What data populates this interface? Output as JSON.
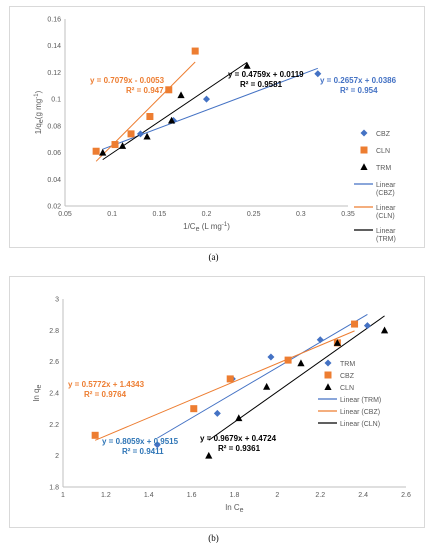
{
  "captions": {
    "a": "(a)",
    "b": "(b)"
  },
  "chart_data": [
    {
      "type": "scatter",
      "id": "a",
      "ylabel": "1/q",
      "ylabel_sub": "e",
      "ylabel_tail": "(g mg",
      "ylabel_sup": "-1",
      "ylabel_end": ")",
      "xlabel": "1/C",
      "xlabel_sub": "e",
      "xlabel_tail": " (L mg",
      "xlabel_sup": "-1",
      "xlabel_end": ")",
      "xlim": [
        0.05,
        0.35
      ],
      "ylim": [
        0.02,
        0.16
      ],
      "xticks": [
        "0.05",
        "0.1",
        "0.15",
        "0.2",
        "0.25",
        "0.3",
        "0.35"
      ],
      "yticks": [
        "0.02",
        "0.04",
        "0.06",
        "0.08",
        "0.1",
        "0.12",
        "0.14",
        "0.16"
      ],
      "grid": false,
      "legend_position": "right",
      "series": [
        {
          "name": "CBZ",
          "marker": "diamond",
          "color": "#4472c4",
          "x": [
            0.13,
            0.165,
            0.2,
            0.318
          ],
          "y": [
            0.074,
            0.084,
            0.1,
            0.119
          ]
        },
        {
          "name": "CLN",
          "marker": "square",
          "color": "#ed7d31",
          "x": [
            0.083,
            0.103,
            0.12,
            0.14,
            0.16,
            0.188
          ],
          "y": [
            0.061,
            0.066,
            0.074,
            0.087,
            0.107,
            0.136
          ]
        },
        {
          "name": "TRM",
          "marker": "triangle",
          "color": "#000000",
          "x": [
            0.09,
            0.111,
            0.137,
            0.163,
            0.173,
            0.243
          ],
          "y": [
            0.06,
            0.065,
            0.072,
            0.084,
            0.103,
            0.125
          ]
        }
      ],
      "fits": [
        {
          "name": "Linear\n(CBZ)",
          "color": "#4472c4",
          "slope": 0.2657,
          "intercept": 0.0386,
          "x_range": [
            0.09,
            0.318
          ]
        },
        {
          "name": "Linear\n(CLN)",
          "color": "#ed7d31",
          "slope": 0.7079,
          "intercept": -0.0053,
          "x_range": [
            0.083,
            0.188
          ]
        },
        {
          "name": "Linear\n(TRM)",
          "color": "#000000",
          "slope": 0.4759,
          "intercept": 0.0119,
          "x_range": [
            0.09,
            0.243
          ]
        }
      ],
      "annotations": [
        {
          "eq": "y = 0.7079x - 0.0053",
          "r2": "R² = 0.947",
          "color": "#ed7d31"
        },
        {
          "eq": "y = 0.4759x + 0.0119",
          "r2": "R² = 0.9581",
          "color": "#000000"
        },
        {
          "eq": "y = 0.2657x + 0.0386",
          "r2": "R² = 0.954",
          "color": "#4472c4"
        }
      ]
    },
    {
      "type": "scatter",
      "id": "b",
      "ylabel": "ln q",
      "ylabel_sub": "e",
      "xlabel": "ln C",
      "xlabel_sub": "e",
      "xlim": [
        1.0,
        2.6
      ],
      "ylim": [
        1.8,
        3.0
      ],
      "xticks": [
        "1",
        "1.2",
        "1.4",
        "1.6",
        "1.8",
        "2",
        "2.2",
        "2.4",
        "2.6"
      ],
      "yticks": [
        "1.8",
        "2",
        "2.2",
        "2.4",
        "2.6",
        "2.8",
        "3"
      ],
      "grid": false,
      "legend_position": "right",
      "series": [
        {
          "name": "TRM",
          "marker": "diamond",
          "color": "#4472c4",
          "x": [
            1.44,
            1.72,
            1.79,
            1.97,
            2.2,
            2.42
          ],
          "y": [
            2.07,
            2.27,
            2.49,
            2.63,
            2.74,
            2.83
          ]
        },
        {
          "name": "CBZ",
          "marker": "square",
          "color": "#ed7d31",
          "x": [
            1.15,
            1.61,
            1.78,
            2.05,
            2.28,
            2.36
          ],
          "y": [
            2.13,
            2.3,
            2.49,
            2.61,
            2.72,
            2.84
          ]
        },
        {
          "name": "CLN",
          "marker": "triangle",
          "color": "#000000",
          "x": [
            1.68,
            1.82,
            1.95,
            2.11,
            2.28,
            2.5
          ],
          "y": [
            2.0,
            2.24,
            2.44,
            2.59,
            2.72,
            2.8
          ]
        }
      ],
      "fits": [
        {
          "name": "Linear (TRM)",
          "color": "#4472c4",
          "slope": 0.8059,
          "intercept": 0.9515,
          "x_range": [
            1.44,
            2.42
          ]
        },
        {
          "name": "Linear (CBZ)",
          "color": "#ed7d31",
          "slope": 0.5772,
          "intercept": 1.4343,
          "x_range": [
            1.15,
            2.36
          ]
        },
        {
          "name": "Linear (CLN)",
          "color": "#000000",
          "slope": 0.9679,
          "intercept": 0.4724,
          "x_range": [
            1.68,
            2.5
          ]
        }
      ],
      "annotations": [
        {
          "eq": "y = 0.5772x + 1.4343",
          "r2": "R² = 0.9764",
          "color": "#ed7d31"
        },
        {
          "eq": "y = 0.8059x + 0.9515",
          "r2": "R² = 0.9411",
          "color": "#2e75b6"
        },
        {
          "eq": "y = 0.9679x + 0.4724",
          "r2": "R² = 0.9361",
          "color": "#000000"
        }
      ]
    }
  ]
}
